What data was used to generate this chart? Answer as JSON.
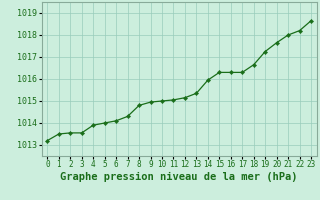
{
  "x": [
    0,
    1,
    2,
    3,
    4,
    5,
    6,
    7,
    8,
    9,
    10,
    11,
    12,
    13,
    14,
    15,
    16,
    17,
    18,
    19,
    20,
    21,
    22,
    23
  ],
  "y": [
    1013.2,
    1013.5,
    1013.55,
    1013.55,
    1013.9,
    1014.0,
    1014.1,
    1014.3,
    1014.8,
    1014.95,
    1015.0,
    1015.05,
    1015.15,
    1015.35,
    1015.95,
    1016.3,
    1016.3,
    1016.3,
    1016.65,
    1017.25,
    1017.65,
    1018.0,
    1018.2,
    1018.65
  ],
  "line_color": "#1a6e1a",
  "marker_color": "#1a6e1a",
  "background_color": "#cceedd",
  "grid_color": "#99ccbb",
  "border_color": "#88aa99",
  "ylabel_ticks": [
    1013,
    1014,
    1015,
    1016,
    1017,
    1018,
    1019
  ],
  "xlabel_label": "Graphe pression niveau de la mer (hPa)",
  "tick_label_color": "#1a6e1a",
  "xlabel_fontsize": 7.5,
  "tick_fontsize": 6,
  "ylim": [
    1012.5,
    1019.5
  ],
  "xlim": [
    -0.5,
    23.5
  ]
}
